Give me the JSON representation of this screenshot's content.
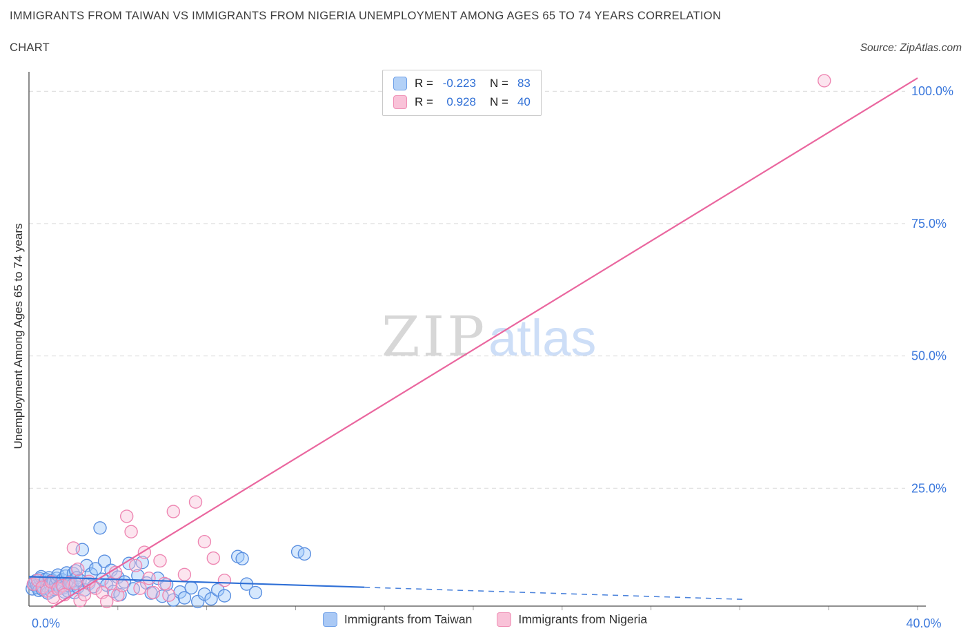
{
  "header": {
    "title_line1": "IMMIGRANTS FROM TAIWAN VS IMMIGRANTS FROM NIGERIA UNEMPLOYMENT AMONG AGES 65 TO 74 YEARS CORRELATION",
    "title_line2": "CHART",
    "source": "Source: ZipAtlas.com"
  },
  "watermark": {
    "part1": "ZIP",
    "part2": "atlas"
  },
  "theme": {
    "tick_label_color": "#3b78dc",
    "value_color": "#2f6fd6",
    "grid_color": "#d9d9d9",
    "axis_color": "#4d4d4d",
    "minor_tick_color": "#9a9a9a",
    "title_color": "#3e3e3e"
  },
  "stats_box": {
    "rows": [
      {
        "r_label": "R =",
        "r_value": "-0.223",
        "n_label": "N =",
        "n_value": "83",
        "fill": "#b3d1f7",
        "border": "#6fa0e8"
      },
      {
        "r_label": "R =",
        "r_value": "0.928",
        "n_label": "N =",
        "n_value": "40",
        "fill": "#f9c2d8",
        "border": "#ef8fb5"
      }
    ]
  },
  "axes": {
    "ylabel": "Unemployment Among Ages 65 to 74 years",
    "x_tick_labels": [
      {
        "value": 0,
        "label": "0.0%"
      },
      {
        "value": 40,
        "label": "40.0%"
      }
    ],
    "y_tick_labels": [
      {
        "value": 25,
        "label": "25.0%"
      },
      {
        "value": 50,
        "label": "50.0%"
      },
      {
        "value": 75,
        "label": "75.0%"
      },
      {
        "value": 100,
        "label": "100.0%"
      }
    ]
  },
  "legend": {
    "items": [
      {
        "label": "Immigrants from Taiwan",
        "fill": "#aac9f5",
        "border": "#6fa0e8"
      },
      {
        "label": "Immigrants from Nigeria",
        "fill": "#f9c2d8",
        "border": "#ef8fb5"
      }
    ]
  },
  "chart_data": {
    "type": "scatter",
    "title": "Immigrants from Taiwan vs Immigrants from Nigeria Unemployment Among Ages 65 to 74 years Correlation Chart",
    "xlabel": "",
    "ylabel": "Unemployment Among Ages 65 to 74 years",
    "xlim": [
      0,
      40
    ],
    "ylim": [
      0,
      104
    ],
    "grid": "horizontal-dashed",
    "legend_position": "bottom",
    "x_ticks_minor": [
      4,
      8,
      12,
      16,
      20,
      24,
      28,
      32,
      36,
      40
    ],
    "series": [
      {
        "name": "Immigrants from Taiwan",
        "R": -0.223,
        "N": 83,
        "point_fill": "rgba(158,201,250,0.42)",
        "point_stroke": "#5a8fe0",
        "points": [
          [
            0.15,
            6.0
          ],
          [
            0.2,
            6.8
          ],
          [
            0.25,
            7.2
          ],
          [
            0.3,
            7.5
          ],
          [
            0.35,
            6.6
          ],
          [
            0.4,
            6.2
          ],
          [
            0.45,
            5.7
          ],
          [
            0.5,
            7.9
          ],
          [
            0.55,
            8.3
          ],
          [
            0.6,
            5.9
          ],
          [
            0.65,
            6.1
          ],
          [
            0.7,
            7.1
          ],
          [
            0.75,
            7.8
          ],
          [
            0.8,
            6.5
          ],
          [
            0.85,
            5.2
          ],
          [
            0.9,
            8.1
          ],
          [
            0.95,
            6.9
          ],
          [
            1.0,
            5.6
          ],
          [
            1.05,
            7.6
          ],
          [
            1.1,
            7.4
          ],
          [
            1.15,
            5.9
          ],
          [
            1.2,
            6.9
          ],
          [
            1.25,
            8.0
          ],
          [
            1.3,
            8.6
          ],
          [
            1.35,
            6.4
          ],
          [
            1.4,
            6.1
          ],
          [
            1.45,
            7.0
          ],
          [
            1.5,
            7.7
          ],
          [
            1.55,
            6.2
          ],
          [
            1.6,
            5.4
          ],
          [
            1.65,
            8.4
          ],
          [
            1.7,
            9.0
          ],
          [
            1.75,
            5.6
          ],
          [
            1.8,
            6.6
          ],
          [
            1.85,
            7.3
          ],
          [
            1.9,
            7.2
          ],
          [
            1.95,
            6.7
          ],
          [
            2.0,
            8.9
          ],
          [
            2.05,
            5.3
          ],
          [
            2.1,
            9.4
          ],
          [
            2.15,
            8.1
          ],
          [
            2.2,
            6.3
          ],
          [
            2.3,
            7.6
          ],
          [
            2.4,
            13.4
          ],
          [
            2.5,
            5.8
          ],
          [
            2.6,
            10.4
          ],
          [
            2.7,
            7.0
          ],
          [
            2.8,
            8.8
          ],
          [
            2.9,
            6.4
          ],
          [
            3.0,
            9.8
          ],
          [
            3.2,
            17.5
          ],
          [
            3.3,
            7.8
          ],
          [
            3.4,
            11.2
          ],
          [
            3.5,
            6.7
          ],
          [
            3.7,
            9.5
          ],
          [
            3.8,
            5.5
          ],
          [
            4.0,
            8.2
          ],
          [
            4.1,
            4.9
          ],
          [
            4.3,
            7.3
          ],
          [
            4.5,
            10.8
          ],
          [
            4.7,
            6.0
          ],
          [
            4.9,
            8.5
          ],
          [
            5.1,
            11.0
          ],
          [
            5.3,
            7.1
          ],
          [
            5.5,
            5.2
          ],
          [
            5.8,
            8.0
          ],
          [
            6.0,
            4.6
          ],
          [
            6.2,
            6.8
          ],
          [
            6.5,
            3.9
          ],
          [
            6.8,
            5.4
          ],
          [
            7.0,
            4.3
          ],
          [
            7.3,
            6.2
          ],
          [
            7.6,
            3.6
          ],
          [
            7.9,
            5.0
          ],
          [
            8.2,
            4.1
          ],
          [
            8.5,
            5.8
          ],
          [
            8.8,
            4.7
          ],
          [
            9.4,
            12.1
          ],
          [
            9.6,
            11.7
          ],
          [
            9.8,
            6.9
          ],
          [
            10.2,
            5.3
          ],
          [
            12.1,
            13.0
          ],
          [
            12.4,
            12.6
          ]
        ]
      },
      {
        "name": "Immigrants from Nigeria",
        "R": 0.928,
        "N": 40,
        "point_fill": "rgba(249,193,216,0.42)",
        "point_stroke": "#ee86b2",
        "points": [
          [
            0.2,
            6.9
          ],
          [
            0.4,
            7.6
          ],
          [
            0.6,
            6.3
          ],
          [
            0.8,
            5.6
          ],
          [
            1.0,
            7.3
          ],
          [
            1.1,
            4.4
          ],
          [
            1.3,
            6.0
          ],
          [
            1.5,
            6.6
          ],
          [
            1.6,
            4.9
          ],
          [
            1.8,
            7.1
          ],
          [
            2.0,
            13.7
          ],
          [
            2.1,
            7.0
          ],
          [
            2.2,
            9.7
          ],
          [
            2.3,
            3.8
          ],
          [
            2.5,
            4.9
          ],
          [
            2.7,
            7.4
          ],
          [
            3.0,
            6.1
          ],
          [
            3.3,
            5.3
          ],
          [
            3.5,
            3.6
          ],
          [
            3.7,
            7.0
          ],
          [
            3.9,
            9.1
          ],
          [
            4.0,
            4.8
          ],
          [
            4.2,
            6.6
          ],
          [
            4.4,
            19.7
          ],
          [
            4.6,
            16.8
          ],
          [
            4.8,
            10.4
          ],
          [
            5.0,
            6.1
          ],
          [
            5.2,
            12.9
          ],
          [
            5.4,
            8.0
          ],
          [
            5.6,
            5.3
          ],
          [
            5.9,
            11.3
          ],
          [
            6.1,
            7.0
          ],
          [
            6.3,
            4.8
          ],
          [
            6.5,
            20.6
          ],
          [
            7.0,
            8.7
          ],
          [
            7.5,
            22.4
          ],
          [
            7.9,
            14.9
          ],
          [
            8.3,
            11.8
          ],
          [
            8.8,
            7.6
          ],
          [
            35.8,
            102.0
          ]
        ]
      }
    ],
    "trend_lines": [
      {
        "name": "taiwan-trend",
        "color": "#2e6fd6",
        "width": 2.2,
        "solid": [
          [
            0,
            8.3
          ],
          [
            15.1,
            6.3
          ]
        ],
        "dashed": [
          [
            15.1,
            6.3
          ],
          [
            32.2,
            4.0
          ]
        ]
      },
      {
        "name": "nigeria-trend",
        "color": "#ea679f",
        "width": 2.2,
        "solid": [
          [
            1.0,
            2.4
          ],
          [
            40,
            102.5
          ]
        ]
      }
    ]
  }
}
